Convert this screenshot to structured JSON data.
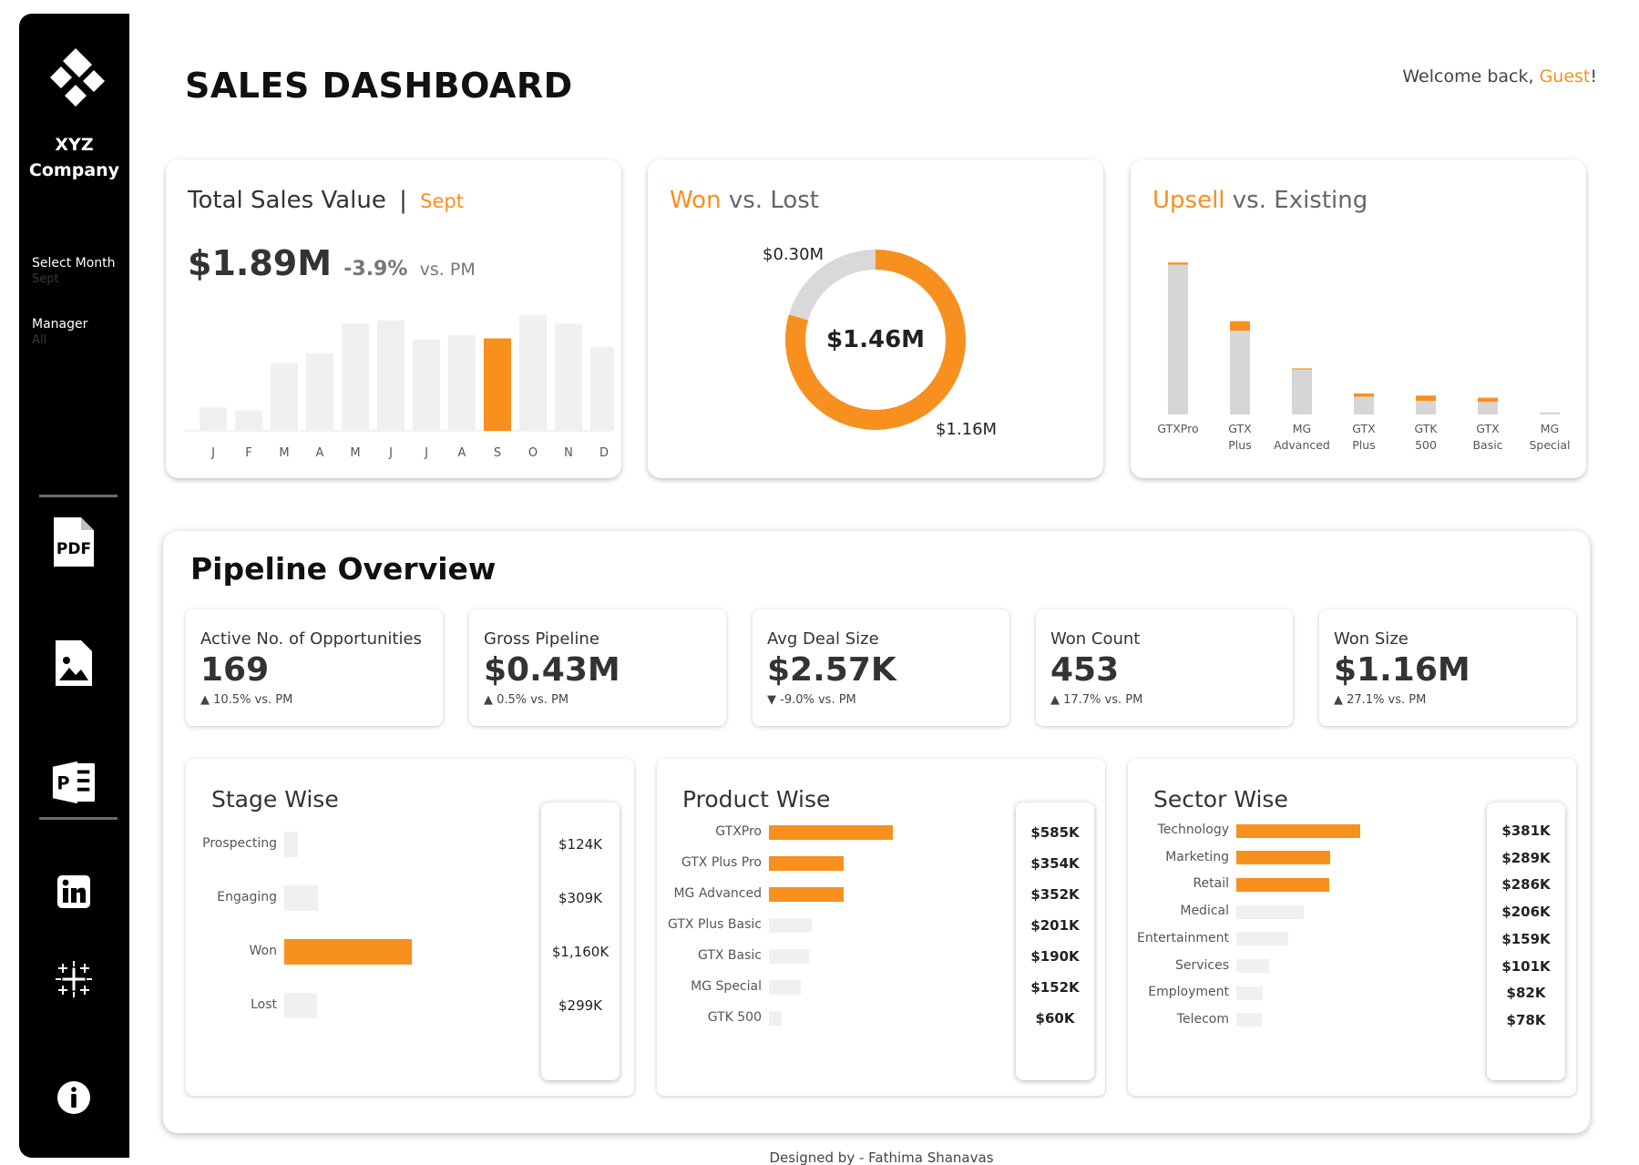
{
  "sidebar": {
    "company": [
      "XYZ",
      "Company"
    ],
    "filters": [
      {
        "label": "Select Month",
        "value": "Sept"
      },
      {
        "label": "Manager",
        "value": "All"
      }
    ],
    "icons": [
      "pdf-icon",
      "image-icon",
      "powerpoint-icon",
      "linkedin-icon",
      "tableau-icon",
      "info-icon"
    ]
  },
  "header": {
    "title": "SALES DASHBOARD",
    "welcome_prefix": "Welcome back, ",
    "welcome_user": "Guest",
    "welcome_suffix": "!"
  },
  "total_sales": {
    "title": "Total Sales Value",
    "separator": "|",
    "month": "Sept",
    "value": "$1.89M",
    "delta": "-3.9%",
    "delta_suffix": "vs. PM"
  },
  "won_lost": {
    "title_a": "Won",
    "title_vs": " vs. ",
    "title_b": "Lost",
    "center": "$1.46M",
    "lost_label": "$0.30M",
    "won_label": "$1.16M"
  },
  "upsell": {
    "title_a": "Upsell",
    "title_vs": " vs. ",
    "title_b": "Existing"
  },
  "pipeline": {
    "title": "Pipeline Overview",
    "kpis": [
      {
        "label": "Active No. of Opportunities",
        "value": "169",
        "delta": "▲ 10.5% vs. PM"
      },
      {
        "label": "Gross Pipeline",
        "value": "$0.43M",
        "delta": "▲ 0.5% vs. PM"
      },
      {
        "label": "Avg Deal Size",
        "value": "$2.57K",
        "delta": "▼ -9.0%  vs. PM"
      },
      {
        "label": "Won Count",
        "value": "453",
        "delta": "▲ 17.7%  vs. PM"
      },
      {
        "label": "Won Size",
        "value": "$1.16M",
        "delta": "▲ 27.1%  vs. PM"
      }
    ]
  },
  "stage_wise": {
    "title": "Stage Wise",
    "rows": [
      {
        "label": "Prospecting",
        "value": "$124K",
        "amount": 124,
        "highlight": false
      },
      {
        "label": "Engaging",
        "value": "$309K",
        "amount": 309,
        "highlight": false
      },
      {
        "label": "Won",
        "value": "$1,160K",
        "amount": 1160,
        "highlight": true
      },
      {
        "label": "Lost",
        "value": "$299K",
        "amount": 299,
        "highlight": false
      }
    ]
  },
  "product_wise": {
    "title": "Product Wise",
    "rows": [
      {
        "label": "GTXPro",
        "value": "$585K",
        "amount": 585,
        "highlight": true
      },
      {
        "label": "GTX Plus Pro",
        "value": "$354K",
        "amount": 354,
        "highlight": true
      },
      {
        "label": "MG Advanced",
        "value": "$352K",
        "amount": 352,
        "highlight": true
      },
      {
        "label": "GTX Plus Basic",
        "value": "$201K",
        "amount": 201,
        "highlight": false
      },
      {
        "label": "GTX Basic",
        "value": "$190K",
        "amount": 190,
        "highlight": false
      },
      {
        "label": "MG Special",
        "value": "$152K",
        "amount": 152,
        "highlight": false
      },
      {
        "label": "GTK 500",
        "value": "$60K",
        "amount": 60,
        "highlight": false
      }
    ]
  },
  "sector_wise": {
    "title": "Sector Wise",
    "rows": [
      {
        "label": "Technology",
        "value": "$381K",
        "amount": 381,
        "highlight": true
      },
      {
        "label": "Marketing",
        "value": "$289K",
        "amount": 289,
        "highlight": true
      },
      {
        "label": "Retail",
        "value": "$286K",
        "amount": 286,
        "highlight": true
      },
      {
        "label": "Medical",
        "value": "$206K",
        "amount": 206,
        "highlight": false
      },
      {
        "label": "Entertainment",
        "value": "$159K",
        "amount": 159,
        "highlight": false
      },
      {
        "label": "Services",
        "value": "$101K",
        "amount": 101,
        "highlight": false
      },
      {
        "label": "Employment",
        "value": "$82K",
        "amount": 82,
        "highlight": false
      },
      {
        "label": "Telecom",
        "value": "$78K",
        "amount": 78,
        "highlight": false
      }
    ]
  },
  "footer": "Designed by - Fathima Shanavas",
  "colors": {
    "accent": "#f7901e",
    "bar_grey": "#f0f0f0",
    "existing_grey": "#d6d6d6"
  },
  "chart_data": [
    {
      "type": "bar",
      "categories": [
        "J",
        "F",
        "M",
        "A",
        "M",
        "J",
        "J",
        "A",
        "S",
        "O",
        "N",
        "D"
      ],
      "values": [
        0.22,
        0.19,
        0.64,
        0.73,
        1.01,
        1.04,
        0.86,
        0.9,
        0.87,
        1.09,
        1.01,
        0.79
      ],
      "highlight_index": 8
    },
    {
      "type": "pie",
      "categories": [
        "Won",
        "Lost"
      ],
      "values": [
        1.16,
        0.3
      ],
      "labels": [
        "$1.16M",
        "$0.30M"
      ]
    },
    {
      "type": "bar",
      "categories": [
        "GTXPro",
        "GTX Plus",
        "MG Advanced",
        "GTX Plus",
        "GTK 500",
        "GTX Basic",
        "MG Special"
      ],
      "category_lines": [
        [
          "GTXPro"
        ],
        [
          "GTX",
          "Plus"
        ],
        [
          "MG",
          "Advanced"
        ],
        [
          "GTX",
          "Plus"
        ],
        [
          "GTK",
          "500"
        ],
        [
          "GTX",
          "Basic"
        ],
        [
          "MG",
          "Special"
        ]
      ],
      "series": [
        {
          "values": [
            143,
            80,
            43,
            17,
            13,
            12,
            2
          ]
        },
        {
          "values": [
            2,
            9,
            1,
            3,
            5,
            4,
            0
          ]
        }
      ]
    }
  ]
}
